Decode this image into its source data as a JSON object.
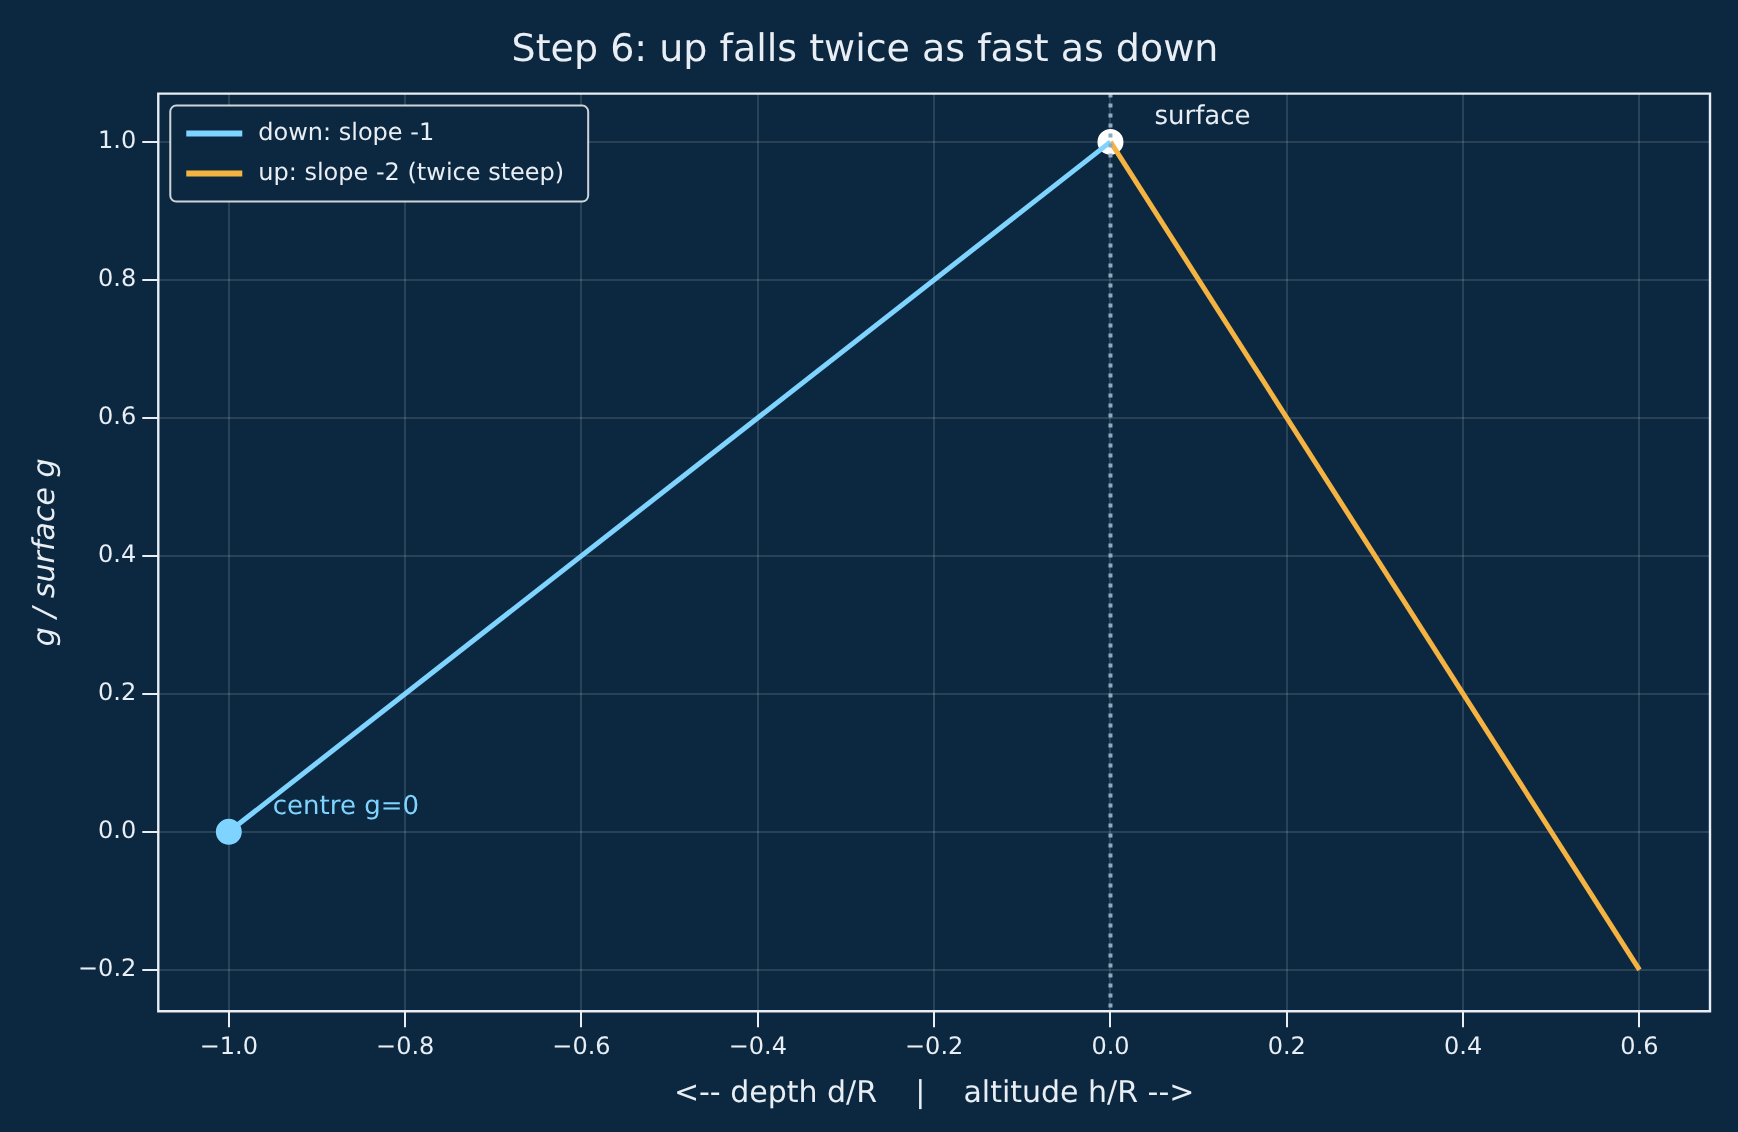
{
  "chart_data": {
    "type": "line",
    "title": "Step 6: up falls twice as fast as down",
    "xlabel": "<-- depth d/R    |    altitude h/R -->",
    "ylabel": "g / surface g",
    "series": [
      {
        "name": "down: slope -1",
        "color": "#7fd4ff",
        "x": [
          -1,
          0
        ],
        "values": [
          0,
          1
        ]
      },
      {
        "name": "up: slope -2 (twice steep)",
        "color": "#f5b342",
        "x": [
          0,
          0.6
        ],
        "values": [
          1,
          -0.2
        ]
      },
      {
        "type": "scatter",
        "color": "#7fd4ff",
        "x": [
          -1
        ],
        "values": [
          0
        ],
        "marker": "circle"
      },
      {
        "type": "scatter",
        "color": "#ffffff",
        "x": [
          0
        ],
        "values": [
          1
        ],
        "marker": "circle"
      }
    ],
    "xlim": [
      -1.08,
      0.68
    ],
    "ylim": [
      -0.26,
      1.07
    ],
    "xticks": [
      {
        "value": -1,
        "label": "−1.0"
      },
      {
        "value": -0.8,
        "label": "−0.8"
      },
      {
        "value": -0.6,
        "label": "−0.6"
      },
      {
        "value": -0.4,
        "label": "−0.4"
      },
      {
        "value": -0.2,
        "label": "−0.2"
      },
      {
        "value": 0,
        "label": "0.0"
      },
      {
        "value": 0.2,
        "label": "0.2"
      },
      {
        "value": 0.4,
        "label": "0.4"
      },
      {
        "value": 0.6,
        "label": "0.6"
      }
    ],
    "yticks": [
      {
        "value": -0.2,
        "label": "−0.2"
      },
      {
        "value": 0,
        "label": "0.0"
      },
      {
        "value": 0.2,
        "label": "0.2"
      },
      {
        "value": 0.4,
        "label": "0.4"
      },
      {
        "value": 0.6,
        "label": "0.6"
      },
      {
        "value": 0.8,
        "label": "0.8"
      },
      {
        "value": 1,
        "label": "1.0"
      }
    ],
    "ref_lines": [
      {
        "axis": "x",
        "value": 0,
        "color": "#8fa8c0",
        "line_style": "dotted"
      }
    ],
    "annotations": [
      {
        "text": "surface",
        "x": 0,
        "y": 1
      },
      {
        "text": "centre g=0",
        "x": -1,
        "y": 0
      }
    ],
    "grid": true,
    "legend": "top left",
    "line_style": "solid"
  }
}
